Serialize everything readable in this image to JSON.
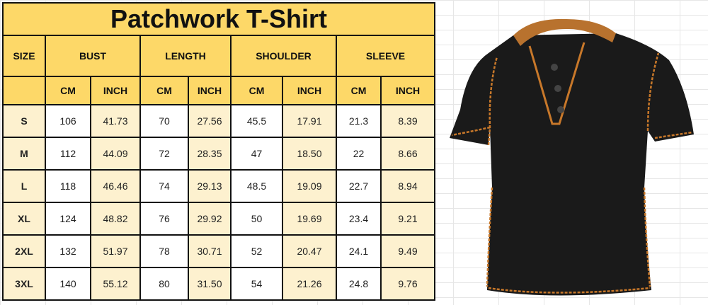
{
  "title": "Patchwork T-Shirt",
  "headers": {
    "size": "SIZE",
    "groups": [
      "BUST",
      "LENGTH",
      "SHOULDER",
      "SLEEVE"
    ],
    "units": [
      "CM",
      "INCH",
      "CM",
      "INCH",
      "CM",
      "INCH",
      "CM",
      "INCH"
    ]
  },
  "rows": [
    {
      "size": "S",
      "values": [
        "106",
        "41.73",
        "70",
        "27.56",
        "45.5",
        "17.91",
        "21.3",
        "8.39"
      ]
    },
    {
      "size": "M",
      "values": [
        "112",
        "44.09",
        "72",
        "28.35",
        "47",
        "18.50",
        "22",
        "8.66"
      ]
    },
    {
      "size": "L",
      "values": [
        "118",
        "46.46",
        "74",
        "29.13",
        "48.5",
        "19.09",
        "22.7",
        "8.94"
      ]
    },
    {
      "size": "XL",
      "values": [
        "124",
        "48.82",
        "76",
        "29.92",
        "50",
        "19.69",
        "23.4",
        "9.21"
      ]
    },
    {
      "size": "2XL",
      "values": [
        "132",
        "51.97",
        "78",
        "30.71",
        "52",
        "20.47",
        "24.1",
        "9.49"
      ]
    },
    {
      "size": "3XL",
      "values": [
        "140",
        "55.12",
        "80",
        "31.50",
        "54",
        "21.26",
        "24.8",
        "9.76"
      ]
    }
  ],
  "colors": {
    "header": "#fdd868",
    "cream": "#fdf1cf",
    "shirt": "#1a1a1a",
    "stitch": "#c8782a"
  }
}
